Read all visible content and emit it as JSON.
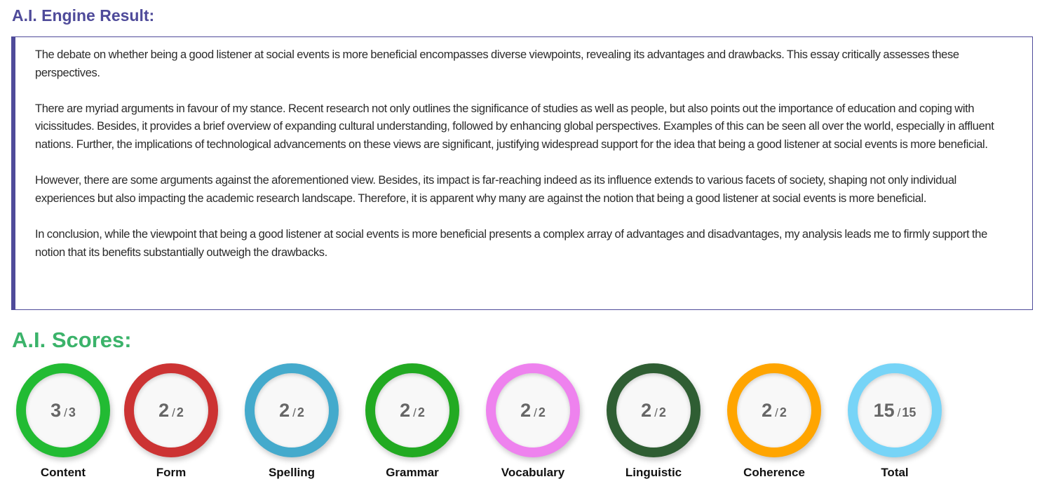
{
  "result": {
    "title": "A.I. Engine Result:",
    "paragraphs": [
      "The debate on whether being a good listener at social events is more beneficial encompasses diverse viewpoints, revealing its advantages and drawbacks. This essay critically assesses these perspectives.",
      "There are myriad arguments in favour of my stance. Recent research not only outlines the significance of studies as well as people, but also points out the importance of education and coping with vicissitudes. Besides, it provides a brief overview of expanding cultural understanding, followed by enhancing global perspectives. Examples of this can be seen all over the world, especially in affluent nations. Further, the implications of technological advancements on these views are significant, justifying widespread support for the idea that being a good listener at social events is more beneficial.",
      "However, there are some arguments against the aforementioned view. Besides, its impact is far-reaching indeed as its influence extends to various facets of society, shaping not only individual experiences but also impacting the academic research landscape. Therefore, it is apparent why many are against the notion that being a good listener at social events is more beneficial.",
      "In conclusion, while the viewpoint that being a good listener at social events is more beneficial presents a complex array of advantages and disadvantages, my analysis leads me to firmly support the notion that its benefits substantially outweigh the drawbacks."
    ],
    "accent_color": "#4f4b9a"
  },
  "scores": {
    "title": "A.I. Scores:",
    "title_color": "#3bb36a",
    "separator": "/",
    "items": [
      {
        "label": "Content",
        "score": "3",
        "max": "3",
        "color": "#22bb33"
      },
      {
        "label": "Form",
        "score": "2",
        "max": "2",
        "color": "#cc3333"
      },
      {
        "label": "Spelling",
        "score": "2",
        "max": "2",
        "color": "#44aacc"
      },
      {
        "label": "Grammar",
        "score": "2",
        "max": "2",
        "color": "#22aa22"
      },
      {
        "label": "Vocabulary",
        "score": "2",
        "max": "2",
        "color": "#ee82ee"
      },
      {
        "label": "Linguistic",
        "score": "2",
        "max": "2",
        "color": "#2f5e33"
      },
      {
        "label": "Coherence",
        "score": "2",
        "max": "2",
        "color": "#ffa500"
      },
      {
        "label": "Total",
        "score": "15",
        "max": "15",
        "color": "#77d4f7"
      }
    ]
  }
}
